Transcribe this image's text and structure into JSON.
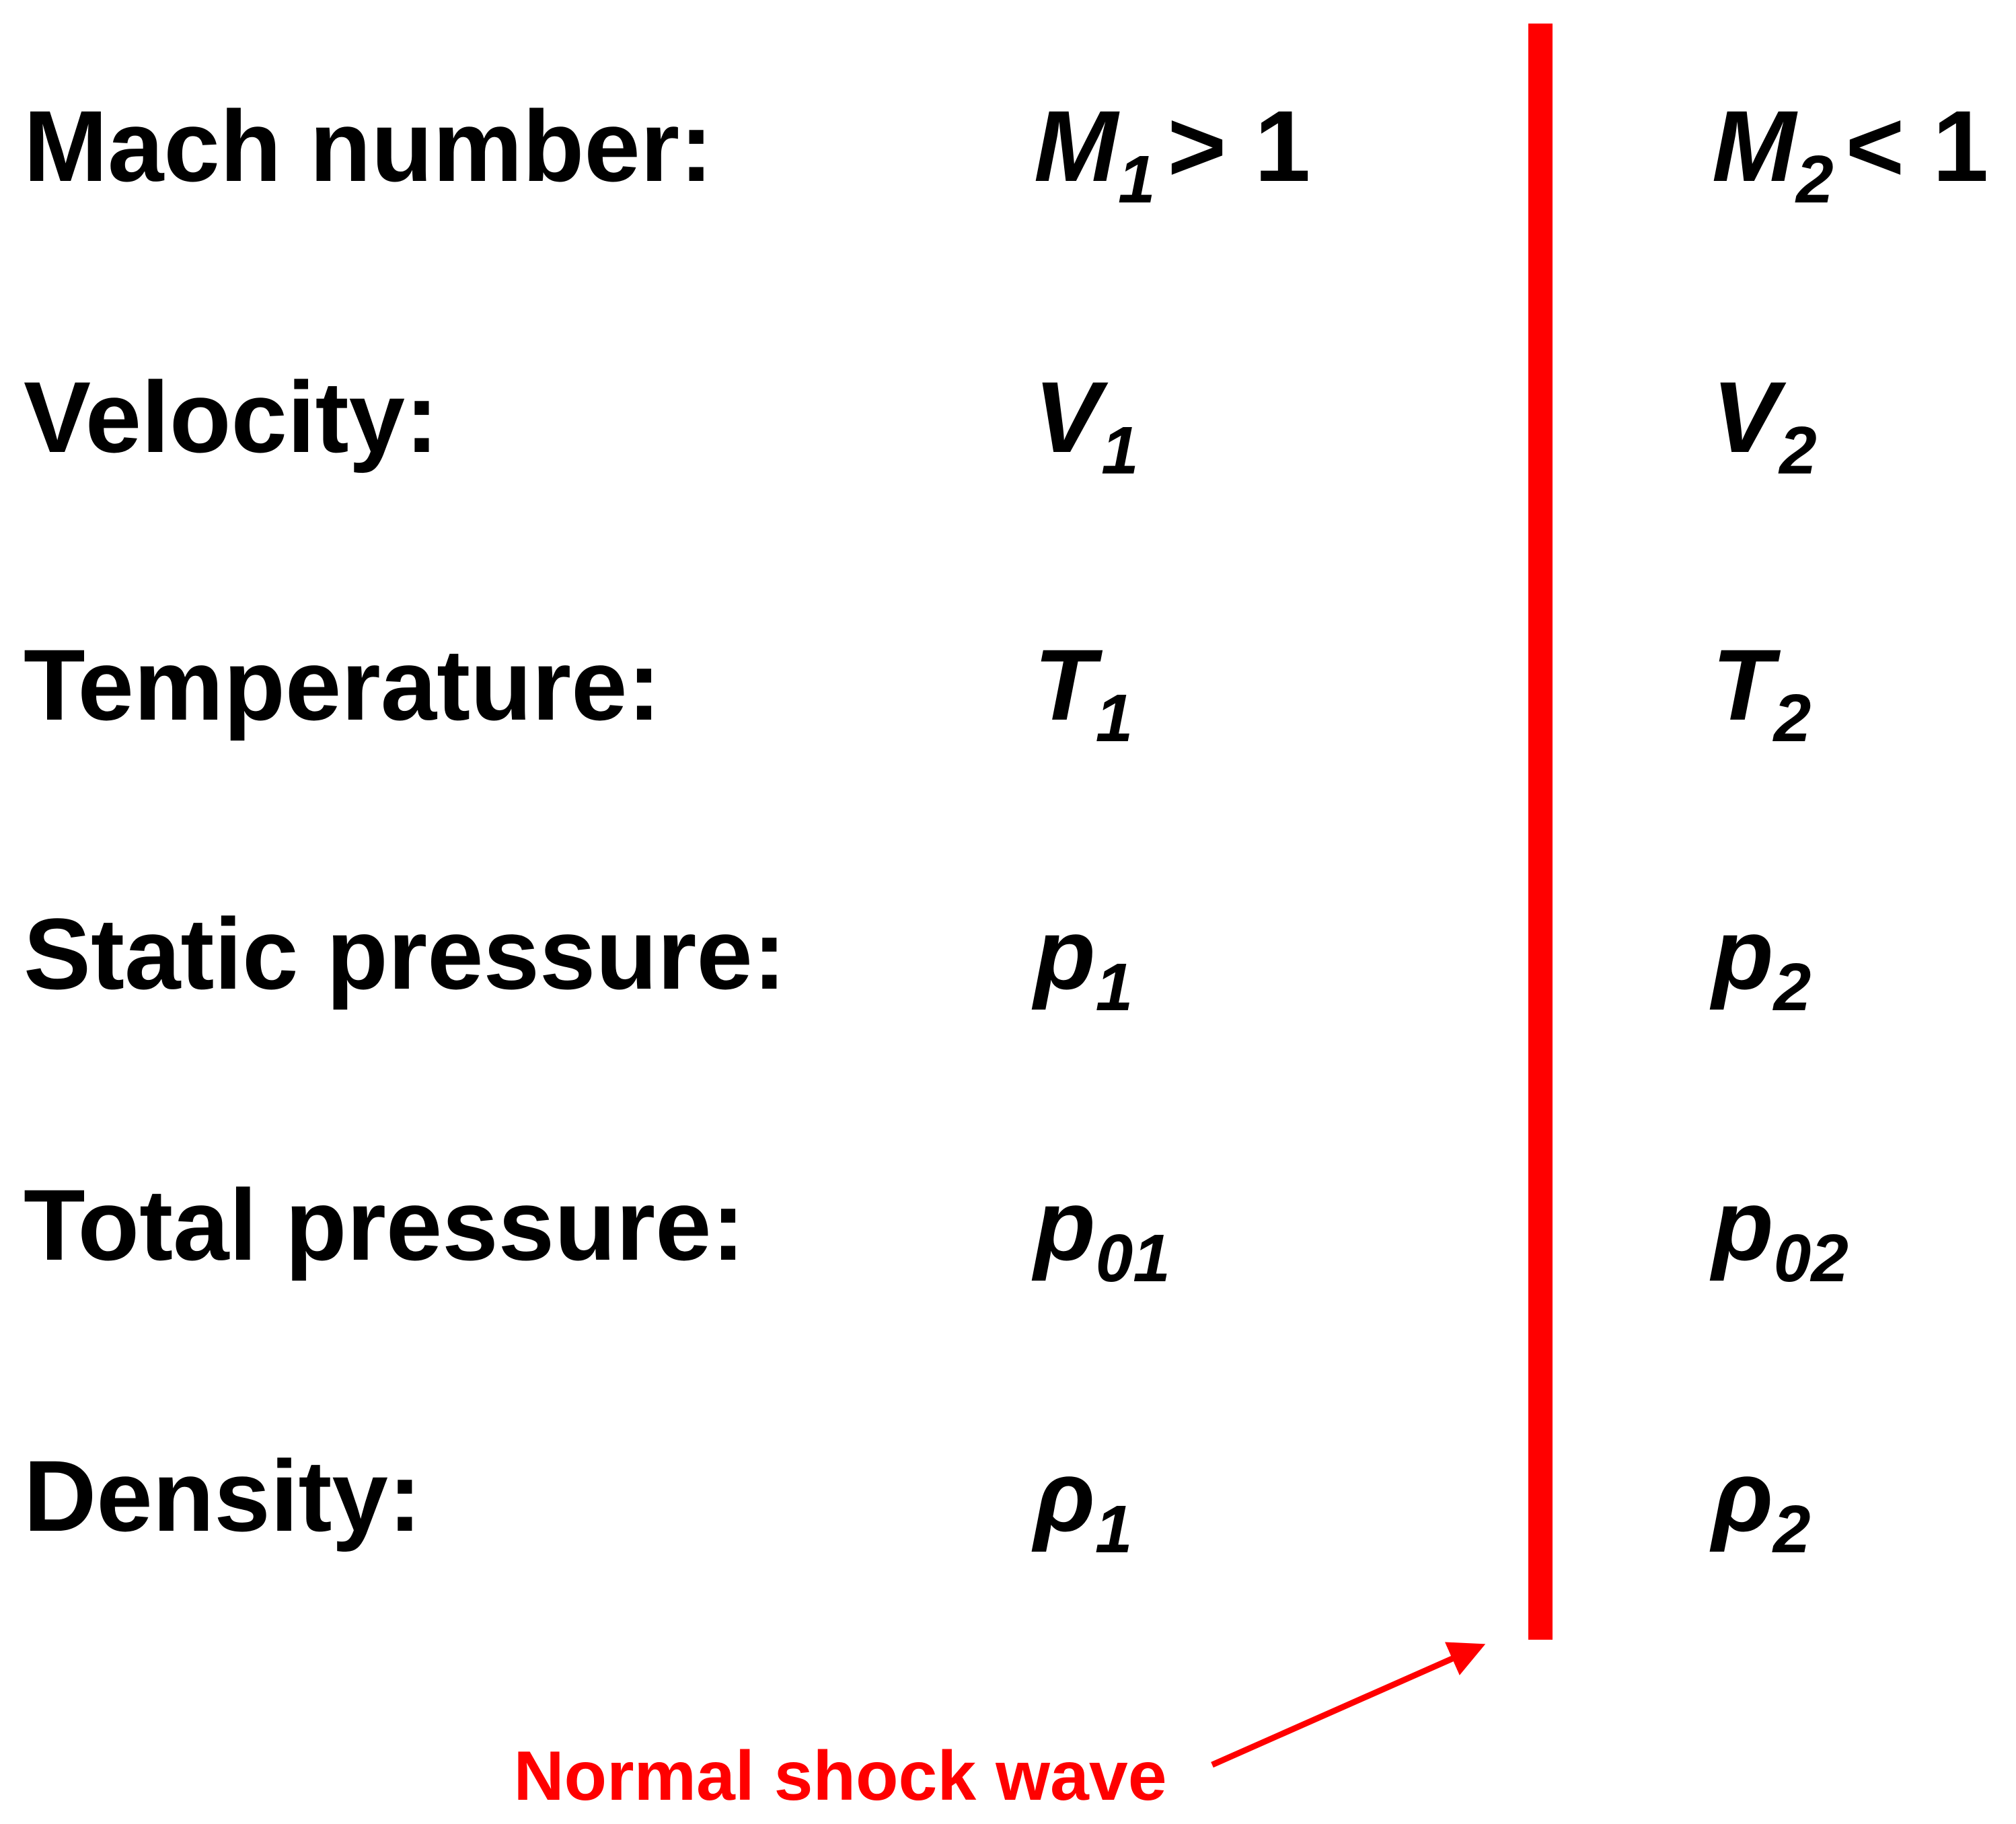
{
  "rows": [
    {
      "label": "Mach number:",
      "upstream": {
        "symbol": "M",
        "sub": "1",
        "relation": "> 1"
      },
      "downstream": {
        "symbol": "M",
        "sub": "2",
        "relation": "< 1"
      }
    },
    {
      "label": "Velocity:",
      "upstream": {
        "symbol": "V",
        "sub": "1"
      },
      "downstream": {
        "symbol": "V",
        "sub": "2"
      }
    },
    {
      "label": "Temperature:",
      "upstream": {
        "symbol": "T",
        "sub": "1"
      },
      "downstream": {
        "symbol": "T",
        "sub": "2"
      }
    },
    {
      "label": "Static pressure:",
      "upstream": {
        "symbol": "p",
        "sub": "1"
      },
      "downstream": {
        "symbol": "p",
        "sub": "2"
      }
    },
    {
      "label": "Total pressure:",
      "upstream": {
        "symbol": "p",
        "sub": "01"
      },
      "downstream": {
        "symbol": "p",
        "sub": "02"
      }
    },
    {
      "label": "Density:",
      "upstream": {
        "symbol": "ρ",
        "sub": "1"
      },
      "downstream": {
        "symbol": "ρ",
        "sub": "2"
      }
    }
  ],
  "shock_label": "Normal shock wave"
}
